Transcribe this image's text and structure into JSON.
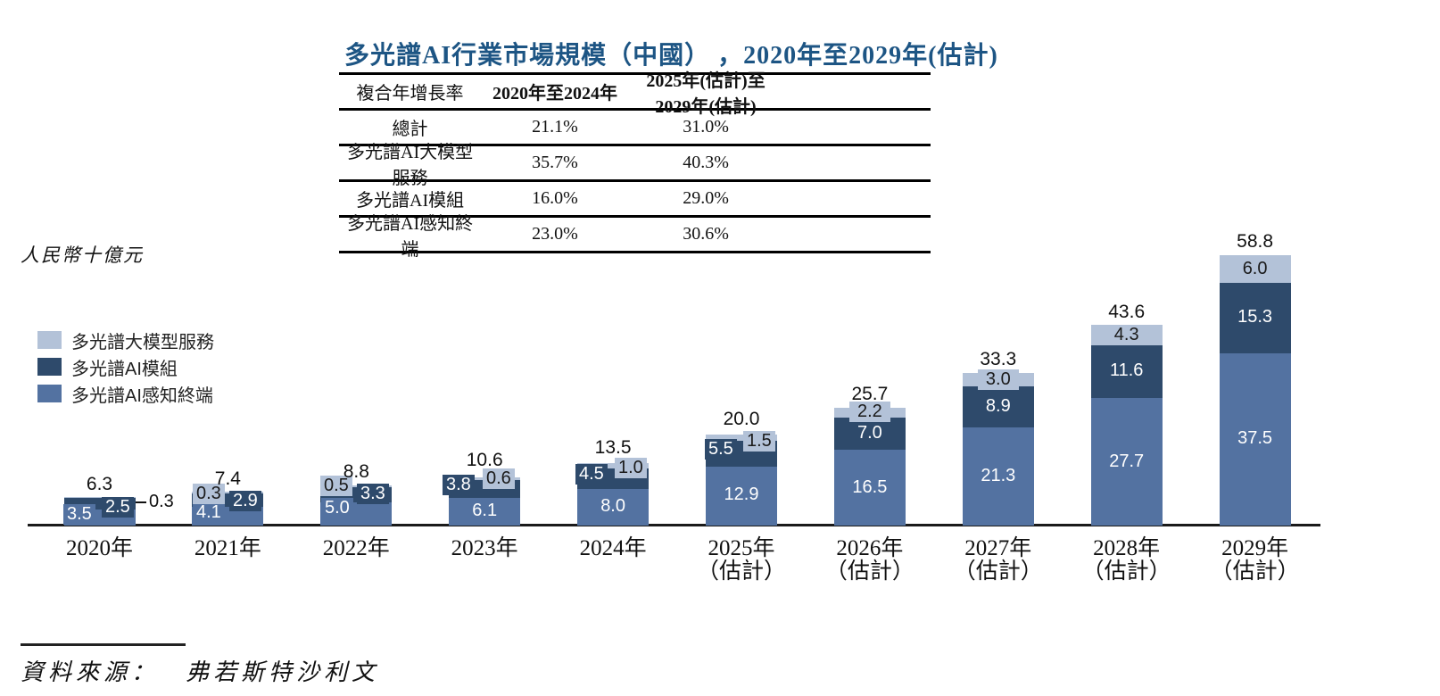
{
  "title": "多光譜AI行業市場規模（中國） ，2020年至2029年(估計)",
  "table": {
    "headers": [
      "複合年增長率",
      "2020年至2024年",
      "2025年(估計)至2029年(估計)"
    ],
    "rows": [
      {
        "label": "總計",
        "v1": "21.1%",
        "v2": "31.0%"
      },
      {
        "label": "多光譜AI大模型服務",
        "v1": "35.7%",
        "v2": "40.3%"
      },
      {
        "label": "多光譜AI模組",
        "v1": "16.0%",
        "v2": "29.0%"
      },
      {
        "label": "多光譜AI感知終端",
        "v1": "23.0%",
        "v2": "30.6%"
      }
    ]
  },
  "chart_data": {
    "type": "bar",
    "stacked": true,
    "title": "多光譜AI行業市場規模（中國），2020年至2029年(估計)",
    "ylabel": "人民幣十億元",
    "ylim": [
      0,
      60
    ],
    "grid": false,
    "legend_position": "left",
    "categories": [
      {
        "label": "2020年",
        "note": ""
      },
      {
        "label": "2021年",
        "note": ""
      },
      {
        "label": "2022年",
        "note": ""
      },
      {
        "label": "2023年",
        "note": ""
      },
      {
        "label": "2024年",
        "note": ""
      },
      {
        "label": "2025年",
        "note": "（估計）"
      },
      {
        "label": "2026年",
        "note": "（估計）"
      },
      {
        "label": "2027年",
        "note": "（估計）"
      },
      {
        "label": "2028年",
        "note": "（估計）"
      },
      {
        "label": "2029年",
        "note": "（估計）"
      }
    ],
    "series": [
      {
        "name": "多光譜AI感知終端",
        "color": "#5372a1",
        "values": [
          3.5,
          4.1,
          5.0,
          6.1,
          8.0,
          12.9,
          16.5,
          21.3,
          27.7,
          37.5
        ]
      },
      {
        "name": "多光譜AI模組",
        "color": "#2e4a6b",
        "values": [
          2.5,
          2.9,
          3.3,
          3.8,
          4.5,
          5.5,
          7.0,
          8.9,
          11.6,
          15.3
        ]
      },
      {
        "name": "多光譜大模型服務",
        "color": "#b3c2d8",
        "values": [
          0.3,
          0.3,
          0.5,
          0.6,
          1.0,
          1.5,
          2.2,
          3.0,
          4.3,
          6.0
        ]
      }
    ],
    "totals": [
      6.3,
      7.4,
      8.8,
      10.6,
      13.5,
      20.0,
      25.7,
      33.3,
      43.6,
      58.8
    ],
    "legend": [
      {
        "label": "多光譜大模型服務",
        "color": "#b3c2d8"
      },
      {
        "label": "多光譜AI模組",
        "color": "#2e4a6b"
      },
      {
        "label": "多光譜AI感知終端",
        "color": "#5372a1"
      }
    ]
  },
  "source": {
    "prefix": "資料來源：",
    "text": "弗若斯特沙利文"
  }
}
